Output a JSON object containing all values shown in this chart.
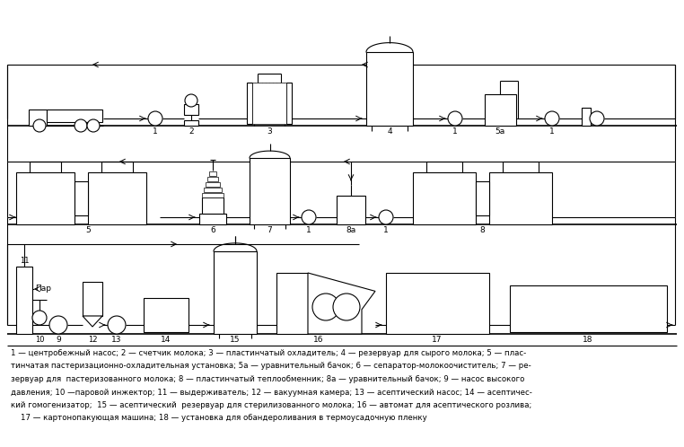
{
  "bg_color": "#ffffff",
  "line_color": "#000000",
  "caption_lines": [
    "1 — центробежный насос; 2 — счетчик молока; 3 — пластинчатый охладитель; 4 — резервуар для сырого молока; 5 — плас-",
    "тинчатая пастеризационно-охладительная установка; 5а — уравнительный бачок; 6 — сепаратор-молокоочиститель; 7 — ре-",
    "зервуар для  пастеризованного молока; 8 — пластинчатый теплообменник; 8а — уравнительный бачок; 9 — насос высокого",
    "давления; 10 —паровой инжектор; 11 — выдерживатель; 12 — вакуумная камера; 13 — асептический насос; 14 — асептичес-",
    "кий гомогенизатор;  15 — асептический  резервуар для стерилизованного молока; 16 — автомат для асептического розлива;",
    "    17 — картонопакующая машина; 18 — установка для обандероливания в термоусадочную пленку"
  ]
}
